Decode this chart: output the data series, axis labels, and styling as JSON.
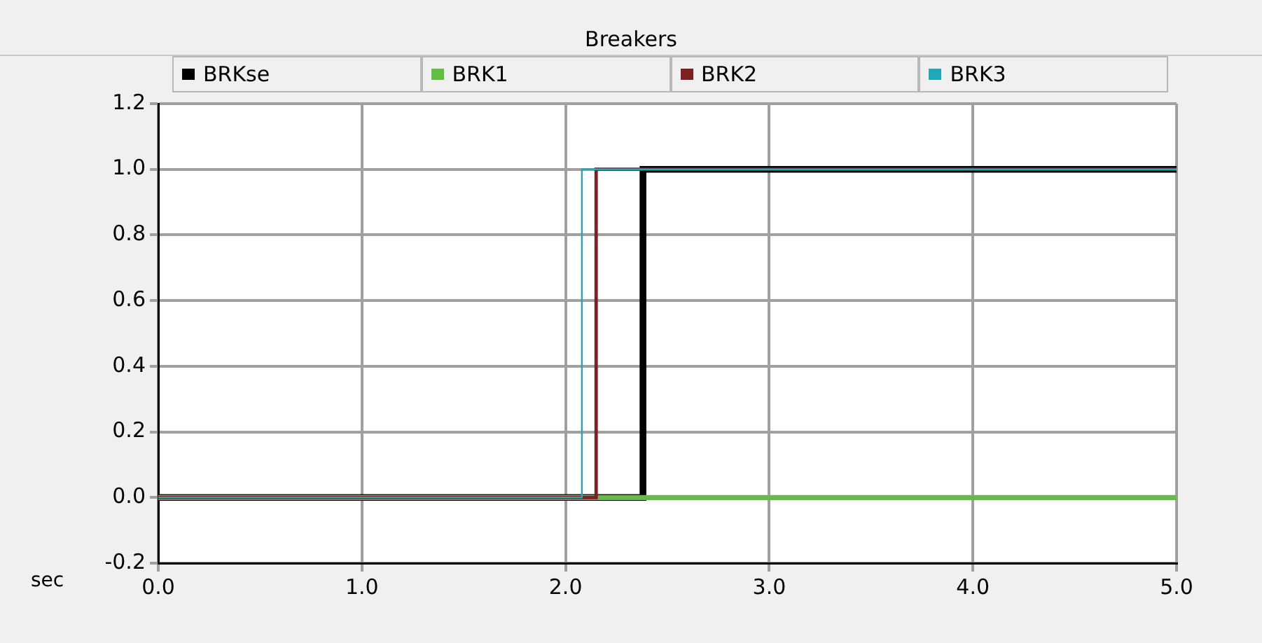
{
  "chart_data": {
    "type": "step",
    "title": "Breakers",
    "xlabel": "sec",
    "legend": "top",
    "grid": true,
    "xlim": [
      0,
      5
    ],
    "ylim": [
      -0.2,
      1.2
    ],
    "xticks": [
      {
        "value": 0,
        "label": "0.0"
      },
      {
        "value": 1,
        "label": "1.0"
      },
      {
        "value": 2,
        "label": "2.0"
      },
      {
        "value": 3,
        "label": "3.0"
      },
      {
        "value": 4,
        "label": "4.0"
      },
      {
        "value": 5,
        "label": "5.0"
      }
    ],
    "yticks": [
      {
        "value": -0.2,
        "label": "-0.2"
      },
      {
        "value": 0,
        "label": "0.0"
      },
      {
        "value": 0.2,
        "label": "0.2"
      },
      {
        "value": 0.4,
        "label": "0.4"
      },
      {
        "value": 0.6,
        "label": "0.6"
      },
      {
        "value": 0.8,
        "label": "0.8"
      },
      {
        "value": 1,
        "label": "1.0"
      },
      {
        "value": 1.2,
        "label": "1.2"
      }
    ],
    "series": [
      {
        "name": "BRKse",
        "color": "#000000",
        "x": [
          0,
          2.38,
          5
        ],
        "values": [
          0,
          1,
          1
        ]
      },
      {
        "name": "BRK1",
        "color": "#5fbf3f",
        "x": [
          0,
          5
        ],
        "values": [
          0,
          0
        ]
      },
      {
        "name": "BRK2",
        "color": "#7f1f1f",
        "x": [
          0,
          2.15,
          5
        ],
        "values": [
          0,
          1,
          1
        ]
      },
      {
        "name": "BRK3",
        "color": "#1fa8b8",
        "x": [
          0,
          2.08,
          5
        ],
        "values": [
          0,
          1,
          1
        ]
      }
    ]
  }
}
